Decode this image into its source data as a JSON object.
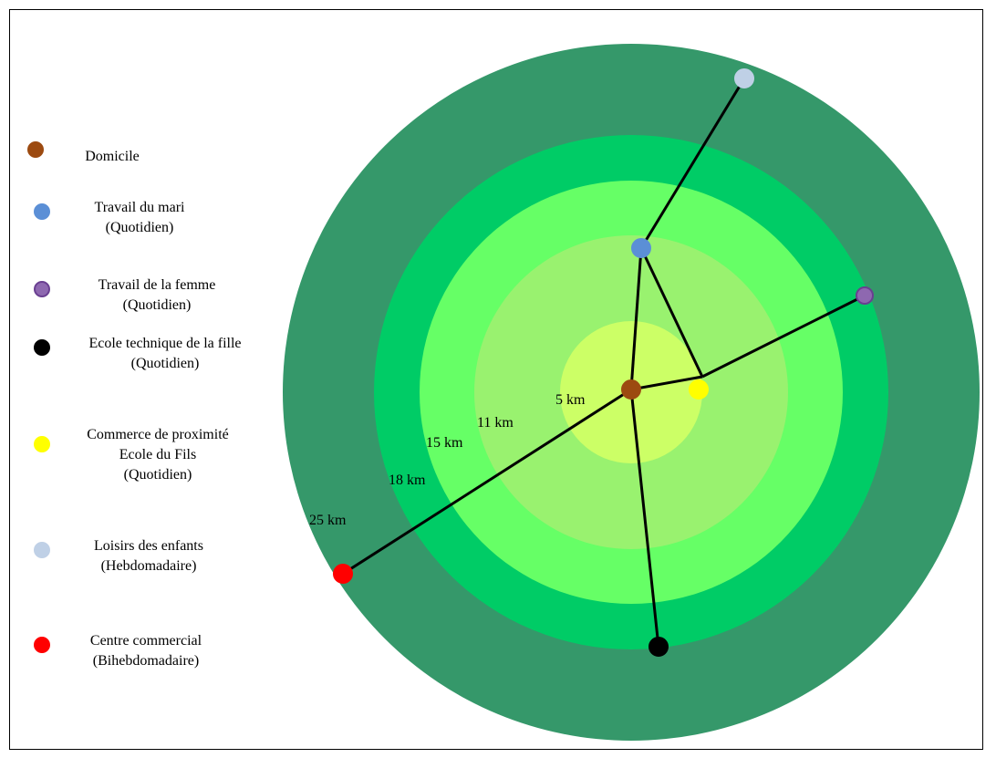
{
  "legend": [
    {
      "key": "domicile",
      "label": "Domicile",
      "color": "#9C4A10",
      "border": "#9C4A10"
    },
    {
      "key": "travail_mari",
      "label": "Travail du mari\n(Quotidien)",
      "color": "#5B8FD6",
      "border": "#5B8FD6"
    },
    {
      "key": "travail_femme",
      "label": "Travail de la femme\n(Quotidien)",
      "color": "#8E68B0",
      "border": "#6A3F91"
    },
    {
      "key": "ecole_fille",
      "label": "Ecole technique de la fille\n(Quotidien)",
      "color": "#000000",
      "border": "#000000"
    },
    {
      "key": "commerce",
      "label": "Commerce de proximité\nEcole du Fils\n(Quotidien)",
      "color": "#FFFF00",
      "border": "#FFFF00"
    },
    {
      "key": "loisirs",
      "label": "Loisirs des enfants\n(Hebdomadaire)",
      "color": "#BFD0E6",
      "border": "#BFD0E6"
    },
    {
      "key": "centre",
      "label": "Centre commercial\n(Bihebdomadaire)",
      "color": "#FF0000",
      "border": "#FF0000"
    }
  ],
  "rings": [
    {
      "label": "25 km",
      "color": "#35986A"
    },
    {
      "label": "18 km",
      "color": "#00CC66"
    },
    {
      "label": "15 km",
      "color": "#66FF66"
    },
    {
      "label": "11 km",
      "color": "#99F26F"
    },
    {
      "label": "5 km",
      "color": "#CCFF66"
    }
  ]
}
